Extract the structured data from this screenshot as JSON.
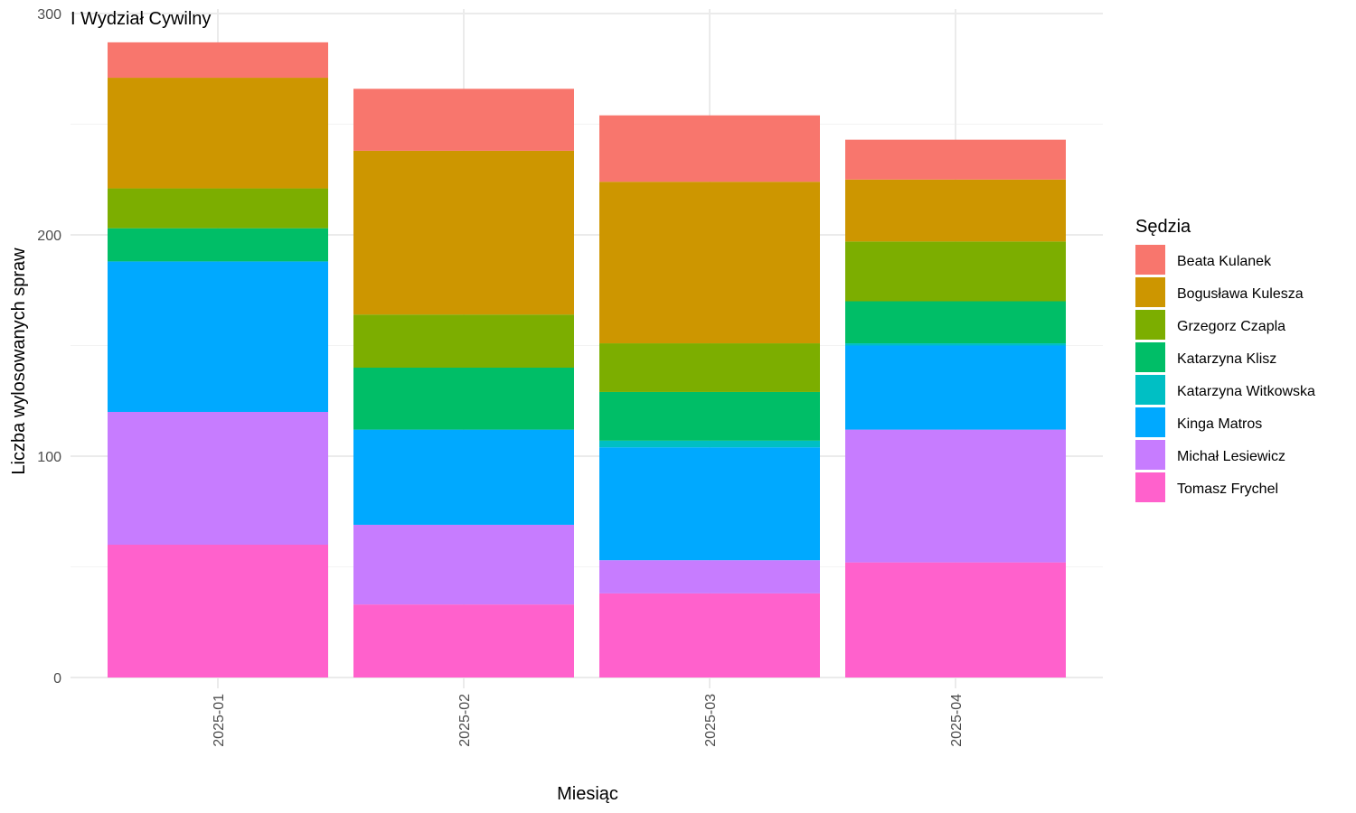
{
  "chart_data": {
    "type": "bar",
    "stacked": true,
    "title": "I Wydział Cywilny",
    "xlabel": "Miesiąc",
    "ylabel": "Liczba wylosowanych spraw",
    "ylim": [
      0,
      300
    ],
    "yticks": [
      0,
      100,
      200,
      300
    ],
    "grid": true,
    "legend": {
      "title": "Sędzia",
      "position": "right"
    },
    "categories": [
      "2025-01",
      "2025-02",
      "2025-03",
      "2025-04"
    ],
    "series": [
      {
        "name": "Tomasz Frychel",
        "color": "#FF61CC",
        "values": [
          60,
          33,
          38,
          52
        ]
      },
      {
        "name": "Michał Lesiewicz",
        "color": "#C77CFF",
        "values": [
          60,
          36,
          15,
          60
        ]
      },
      {
        "name": "Kinga Matros",
        "color": "#00A9FF",
        "values": [
          68,
          43,
          51,
          38
        ]
      },
      {
        "name": "Katarzyna Witkowska",
        "color": "#00BFC4",
        "values": [
          0,
          0,
          3,
          1
        ]
      },
      {
        "name": "Katarzyna Klisz",
        "color": "#00BE67",
        "values": [
          15,
          28,
          22,
          19
        ]
      },
      {
        "name": "Grzegorz Czapla",
        "color": "#7CAE00",
        "values": [
          18,
          24,
          22,
          27
        ]
      },
      {
        "name": "Bogusława Kulesza",
        "color": "#CD9600",
        "values": [
          50,
          74,
          73,
          28
        ]
      },
      {
        "name": "Beata Kulanek",
        "color": "#F8766D",
        "values": [
          16,
          28,
          30,
          18
        ]
      }
    ]
  }
}
